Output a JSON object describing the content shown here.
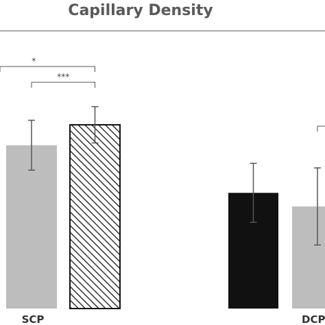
{
  "chart_data": {
    "type": "bar",
    "title": "Capillary Density",
    "categories": [
      "SCP",
      "DCP"
    ],
    "bars": [
      {
        "category": "SCP",
        "value": 72,
        "error": 11,
        "fill": "#bdbdbd",
        "pattern": "solid"
      },
      {
        "category": "SCP",
        "value": 81,
        "error": 8,
        "fill": "#ffffff",
        "pattern": "hatched"
      },
      {
        "category": "DCP",
        "value": 51,
        "error": 13,
        "fill": "#111111",
        "pattern": "solid"
      },
      {
        "category": "DCP",
        "value": 45,
        "error": 17,
        "fill": "#bdbdbd",
        "pattern": "solid"
      }
    ],
    "significance": [
      {
        "label": "*",
        "from_bar": 0,
        "to_bar": 1,
        "level": 1
      },
      {
        "label": "***",
        "from_bar": 0,
        "to_bar": 1,
        "level": 0
      }
    ],
    "ylim": [
      0,
      120
    ],
    "xlabel": "",
    "ylabel": ""
  }
}
